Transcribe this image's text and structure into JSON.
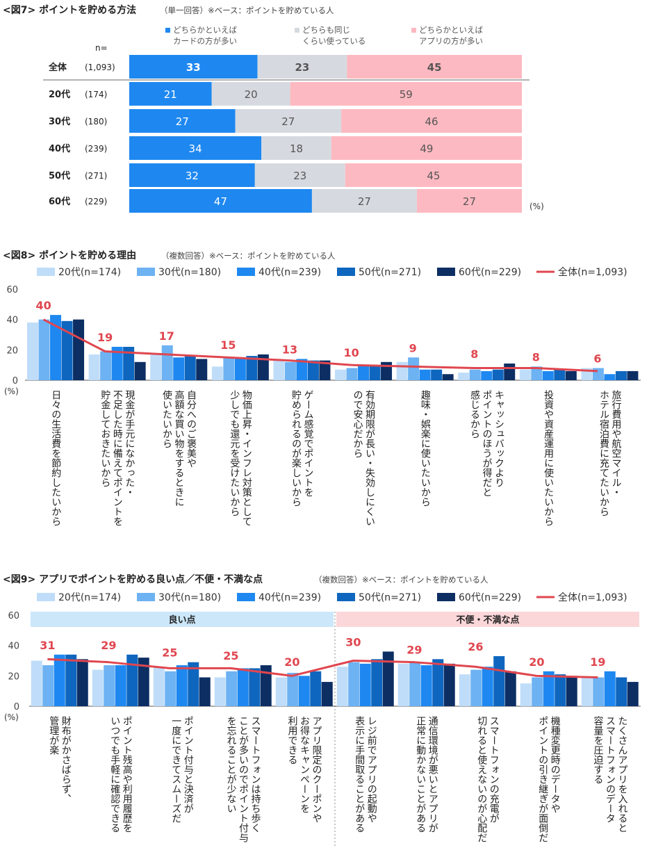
{
  "colors": {
    "card": "#1E88F0",
    "same": "#D6DAE0",
    "app": "#FDB9C1",
    "age20": "#BFDDF9",
    "age30": "#6DB2F2",
    "age40": "#1E88F0",
    "age50": "#0F66BE",
    "age60": "#0C2E63",
    "total": "#E0464F",
    "good_bg": "#CCE7FA",
    "bad_bg": "#FCD7DA"
  },
  "chart_data": [
    {
      "type": "bar",
      "stacked": true,
      "orientation": "horizontal",
      "title": "<図7> ポイントを貯める方法",
      "note": "（単一回答）※ベース：ポイントを貯めている人",
      "n_label": "n=",
      "unit_label": "(%)",
      "legend": [
        {
          "line1": "どちらかといえば",
          "line2": "カードの方が多い",
          "color_key": "card"
        },
        {
          "line1": "どちらも同じ",
          "line2": "くらい使っている",
          "color_key": "same"
        },
        {
          "line1": "どちらかといえば",
          "line2": "アプリの方が多い",
          "color_key": "app"
        }
      ],
      "categories": [
        "全体",
        "20代",
        "30代",
        "40代",
        "50代",
        "60代"
      ],
      "n_values": [
        "(1,093)",
        "(174)",
        "(180)",
        "(239)",
        "(271)",
        "(229)"
      ],
      "series": [
        {
          "name": "どちらかといえばカードの方が多い",
          "values": [
            33,
            21,
            27,
            34,
            32,
            47
          ]
        },
        {
          "name": "どちらも同じくらい使っている",
          "values": [
            23,
            20,
            27,
            18,
            23,
            27
          ]
        },
        {
          "name": "どちらかといえばアプリの方が多い",
          "values": [
            45,
            59,
            46,
            49,
            45,
            27
          ]
        }
      ]
    },
    {
      "type": "bar",
      "title": "<図8> ポイントを貯める理由",
      "note": "（複数回答）※ベース：ポイントを貯めている人",
      "ylim": [
        0,
        60
      ],
      "yticks": [
        "0",
        "20",
        "40",
        "60"
      ],
      "ylabel": "(%)",
      "legend_series": [
        "20代(n=174)",
        "30代(n=180)",
        "40代(n=239)",
        "50代(n=271)",
        "60代(n=229)"
      ],
      "legend_total": "全体(n=1,093)",
      "categories": [
        "日々の生活費を節約したいから",
        "現金が手元になかった・不足した時に備えてポイントを貯金しておきたいから",
        "自分へのご褒美や高額な買い物をするときに使いたいから",
        "物価上昇・インフレ対策として少しでも還元を受けたいから",
        "ゲーム感覚でポイントを貯められるのが楽しいから",
        "有効期限が長い・失効しにくいので安心だから",
        "趣味・娯楽に使いたいから",
        "キャッシュバックよりポイントのほうが得だと感じるから",
        "投資や資産運用に使いたいから",
        "旅行費用や航空マイル・ホテル宿泊費に充てたいから"
      ],
      "category_lines": [
        [
          "日々の生活費を節約したいから"
        ],
        [
          "現金が手元になかった・",
          "不足した時に備えてポイントを",
          "貯金しておきたいから"
        ],
        [
          "自分へのご褒美や",
          "高額な買い物をするときに",
          "使いたいから"
        ],
        [
          "物価上昇・インフレ対策として",
          "少しでも還元を受けたいから"
        ],
        [
          "ゲーム感覚でポイントを",
          "貯められるのが楽しいから"
        ],
        [
          "有効期限が長い・失効しにくい",
          "ので安心だから"
        ],
        [
          "趣味・娯楽に使いたいから"
        ],
        [
          "キャッシュバックより",
          "ポイントのほうが得だと",
          "感じるから"
        ],
        [
          "投資や資産運用に使いたいから"
        ],
        [
          "旅行費用や航空マイル・",
          "ホテル宿泊費に充てたいから"
        ]
      ],
      "series": [
        {
          "name": "20代(n=174)",
          "values": [
            38,
            17,
            17,
            9,
            13,
            7,
            12,
            5,
            7,
            8
          ]
        },
        {
          "name": "30代(n=180)",
          "values": [
            40,
            19,
            23,
            15,
            12,
            8,
            15,
            7,
            9,
            8
          ]
        },
        {
          "name": "40代(n=239)",
          "values": [
            43,
            22,
            15,
            15,
            14,
            10,
            7,
            6,
            6,
            4
          ]
        },
        {
          "name": "50代(n=271)",
          "values": [
            39,
            22,
            16,
            16,
            13,
            10,
            7,
            7,
            7,
            6
          ]
        },
        {
          "name": "60代(n=229)",
          "values": [
            40,
            12,
            14,
            17,
            13,
            12,
            4,
            11,
            6,
            6
          ]
        }
      ],
      "total": {
        "name": "全体(n=1,093)",
        "values": [
          40,
          19,
          17,
          15,
          13,
          10,
          9,
          8,
          8,
          6
        ]
      }
    },
    {
      "type": "bar",
      "title": "<図9> アプリでポイントを貯める良い点／不便・不満な点",
      "note": "（複数回答）※ベース：ポイントを貯めている人",
      "ylim": [
        0,
        60
      ],
      "yticks": [
        "0",
        "20",
        "40",
        "60"
      ],
      "ylabel": "(%)",
      "legend_series": [
        "20代(n=174)",
        "30代(n=180)",
        "40代(n=239)",
        "50代(n=271)",
        "60代(n=229)"
      ],
      "legend_total": "全体(n=1,093)",
      "groups": [
        {
          "label": "良い点",
          "count": 5
        },
        {
          "label": "不便・不満な点",
          "count": 5
        }
      ],
      "categories": [
        "財布がかさばらず、管理が楽",
        "ポイント残高や利用履歴をいつでも手軽に確認できる",
        "ポイント付与と決済が一度にできてスムーズだ",
        "スマートフォンは持ち歩くことが多いのでポイント付与を忘れることが少ない",
        "アプリ限定のクーポンやお得なキャンペーンを利用できる",
        "レジ前でアプリの起動や表示に手間取ることがある",
        "通信環境が悪いとアプリが正常に動かないことがある",
        "スマートフォンの充電が切れると使えないのが心配だ",
        "機種変更時のデータやポイントの引き継ぎが面倒だ",
        "たくさんアプリを入れるとスマートフォンのデータ容量を圧迫する"
      ],
      "category_lines": [
        [
          "財布がかさばらず、",
          "管理が楽"
        ],
        [
          "ポイント残高や利用履歴を",
          "いつでも手軽に確認できる"
        ],
        [
          "ポイント付与と決済が",
          "一度にできてスムーズだ"
        ],
        [
          "スマートフォンは持ち歩く",
          "ことが多いのでポイント付与",
          "を忘れることが少ない"
        ],
        [
          "アプリ限定のクーポンや",
          "お得なキャンペーンを",
          "利用できる"
        ],
        [
          "レジ前でアプリの起動や",
          "表示に手間取ることがある"
        ],
        [
          "通信環境が悪いとアプリが",
          "正常に動かないことがある"
        ],
        [
          "スマートフォンの充電が",
          "切れると使えないのが心配だ"
        ],
        [
          "機種変更時のデータや",
          "ポイントの引き継ぎが面倒だ"
        ],
        [
          "たくさんアプリを入れると",
          "スマートフォンのデータ",
          "容量を圧迫する"
        ]
      ],
      "series": [
        {
          "name": "20代(n=174)",
          "values": [
            30,
            24,
            26,
            19,
            19,
            26,
            28,
            21,
            15,
            19
          ]
        },
        {
          "name": "30代(n=180)",
          "values": [
            27,
            27,
            23,
            23,
            22,
            29,
            29,
            24,
            19,
            19
          ]
        },
        {
          "name": "40代(n=239)",
          "values": [
            34,
            27,
            27,
            25,
            20,
            28,
            27,
            26,
            23,
            23
          ]
        },
        {
          "name": "50代(n=271)",
          "values": [
            34,
            34,
            29,
            25,
            23,
            31,
            31,
            33,
            21,
            19
          ]
        },
        {
          "name": "60代(n=229)",
          "values": [
            31,
            32,
            19,
            27,
            16,
            36,
            28,
            23,
            20,
            16
          ]
        }
      ],
      "total": {
        "name": "全体(n=1,093)",
        "values": [
          31,
          29,
          25,
          25,
          20,
          30,
          29,
          26,
          20,
          19
        ]
      }
    }
  ]
}
